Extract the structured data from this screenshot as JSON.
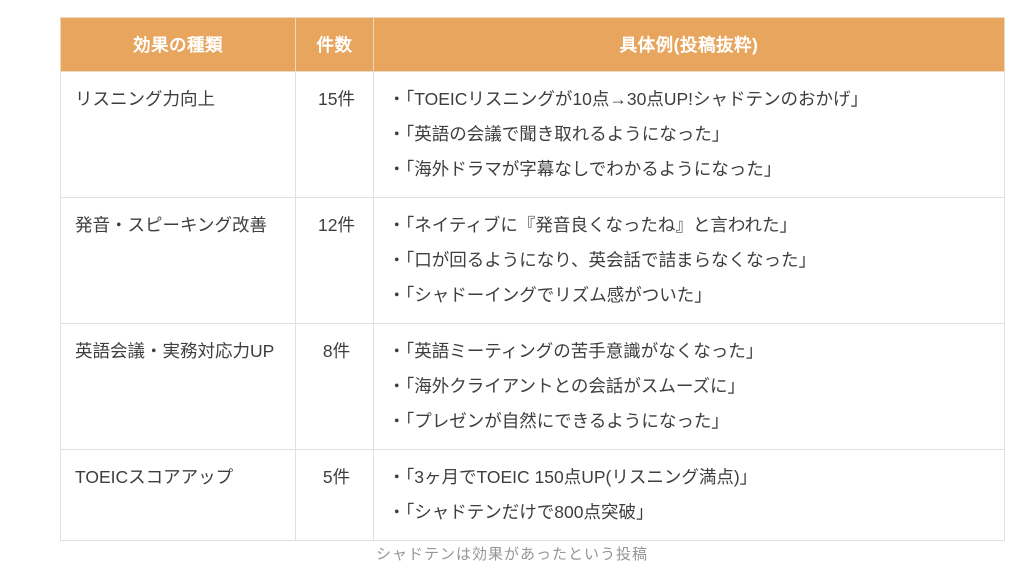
{
  "chart_data": {
    "type": "table",
    "columns": [
      "効果の種類",
      "件数",
      "具体例(投稿抜粋)"
    ],
    "rows": [
      {
        "category": "リスニング力向上",
        "count": 15,
        "count_label": "15件",
        "quotes": [
          "・「TOEICリスニングが10点→30点UP!シャドテンのおかげ」",
          "・「英語の会議で聞き取れるようになった」",
          "・「海外ドラマが字幕なしでわかるようになった」"
        ]
      },
      {
        "category": "発音・スピーキング改善",
        "count": 12,
        "count_label": "12件",
        "quotes": [
          "・「ネイティブに『発音良くなったね』と言われた」",
          "・「口が回るようになり、英会話で詰まらなくなった」",
          "・「シャドーイングでリズム感がついた」"
        ]
      },
      {
        "category": "英語会議・実務対応力UP",
        "count": 8,
        "count_label": "8件",
        "quotes": [
          "・「英語ミーティングの苦手意識がなくなった」",
          "・「海外クライアントとの会話がスムーズに」",
          "・「プレゼンが自然にできるようになった」"
        ]
      },
      {
        "category": "TOEICスコアアップ",
        "count": 5,
        "count_label": "5件",
        "quotes": [
          "・「3ヶ月でTOEIC 150点UP(リスニング満点)」",
          "・「シャドテンだけで800点突破」"
        ]
      }
    ],
    "caption": "シャドテンは効果があったという投稿",
    "layout_hints": {
      "header_position": "top",
      "grid": true
    }
  },
  "colors": {
    "header_bg": "#E8A55E",
    "header_text": "#FFFFFF",
    "body_text": "#3E3E40",
    "border": "#E0E0E0",
    "caption_text": "#969698",
    "page_bg": "#FFFFFF"
  }
}
